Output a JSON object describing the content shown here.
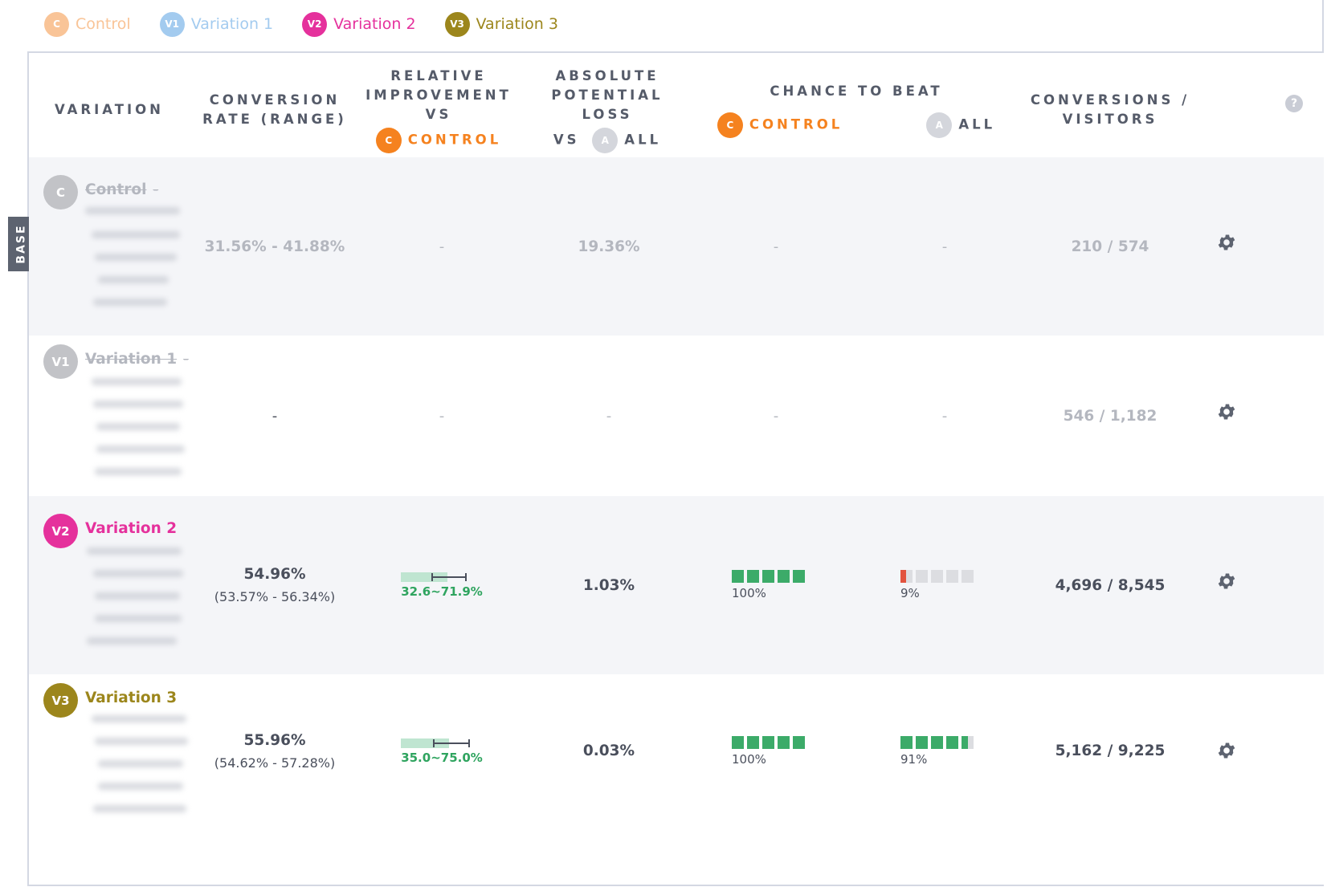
{
  "legend": [
    {
      "badge": "C",
      "label": "Control",
      "color": "#f9c497"
    },
    {
      "badge": "V1",
      "label": "Variation 1",
      "color": "#a3cbef"
    },
    {
      "badge": "V2",
      "label": "Variation 2",
      "color": "#e5319c"
    },
    {
      "badge": "V3",
      "label": "Variation 3",
      "color": "#9c861c"
    }
  ],
  "header": {
    "variation": "VARIATION",
    "conversion_rate": [
      "CONVERSION",
      "RATE (RANGE)"
    ],
    "relative": [
      "RELATIVE",
      "IMPROVEMENT",
      "VS"
    ],
    "relative_badge": "C",
    "relative_target": "CONTROL",
    "absolute": [
      "ABSOLUTE",
      "POTENTIAL",
      "LOSS"
    ],
    "absolute_vs": "VS",
    "absolute_badge": "A",
    "absolute_target": "ALL",
    "chance": "CHANCE TO BEAT",
    "chance_control_badge": "C",
    "chance_control": "CONTROL",
    "chance_all_badge": "A",
    "chance_all": "ALL",
    "conversions": [
      "CONVERSIONS /",
      "VISITORS"
    ],
    "help_icon": "?"
  },
  "base_tab": "BASE",
  "rows": [
    {
      "badge": "C",
      "color": "#c2c3c7",
      "name": "Control",
      "sep": "-",
      "struck": true,
      "conversion_rate": "31.56% - 41.88%",
      "conversion_range": "",
      "relative": "-",
      "absolute": "19.36%",
      "chance_control": "-",
      "chance_all": "-",
      "conversions": "210 / 574"
    },
    {
      "badge": "V1",
      "color": "#c2c3c7",
      "name": "Variation 1",
      "sep": "-",
      "struck": true,
      "conversion_rate": "-",
      "conversion_range": "",
      "relative": "-",
      "absolute": "-",
      "chance_control": "-",
      "chance_all": "-",
      "conversions": "546 / 1,182"
    },
    {
      "badge": "V2",
      "color": "#e5319c",
      "name": "Variation 2",
      "sep": "",
      "struck": false,
      "conversion_rate": "54.96%",
      "conversion_range": "(53.57% - 56.34%)",
      "relative_label": "32.6~71.9%",
      "relative_low": 32.6,
      "relative_high": 71.9,
      "absolute": "1.03%",
      "chance_control_label": "100%",
      "chance_control_value": 1.0,
      "chance_all_label": "9%",
      "chance_all_value": 0.09,
      "conversions": "4,696 / 8,545"
    },
    {
      "badge": "V3",
      "color": "#9c861c",
      "name": "Variation 3",
      "sep": "",
      "struck": false,
      "conversion_rate": "55.96%",
      "conversion_range": "(54.62% - 57.28%)",
      "relative_label": "35.0~75.0%",
      "relative_low": 35.0,
      "relative_high": 75.0,
      "absolute": "0.03%",
      "chance_control_label": "100%",
      "chance_control_value": 1.0,
      "chance_all_label": "91%",
      "chance_all_value": 0.91,
      "conversions": "5,162 / 9,225"
    }
  ],
  "colors": {
    "orange": "#f5821f",
    "green": "#3cab69",
    "red": "#e2533f",
    "grey_block": "#dcdde1",
    "gear": "#5d6370"
  },
  "icons": {
    "gear": "gear-icon",
    "help": "help-icon"
  }
}
